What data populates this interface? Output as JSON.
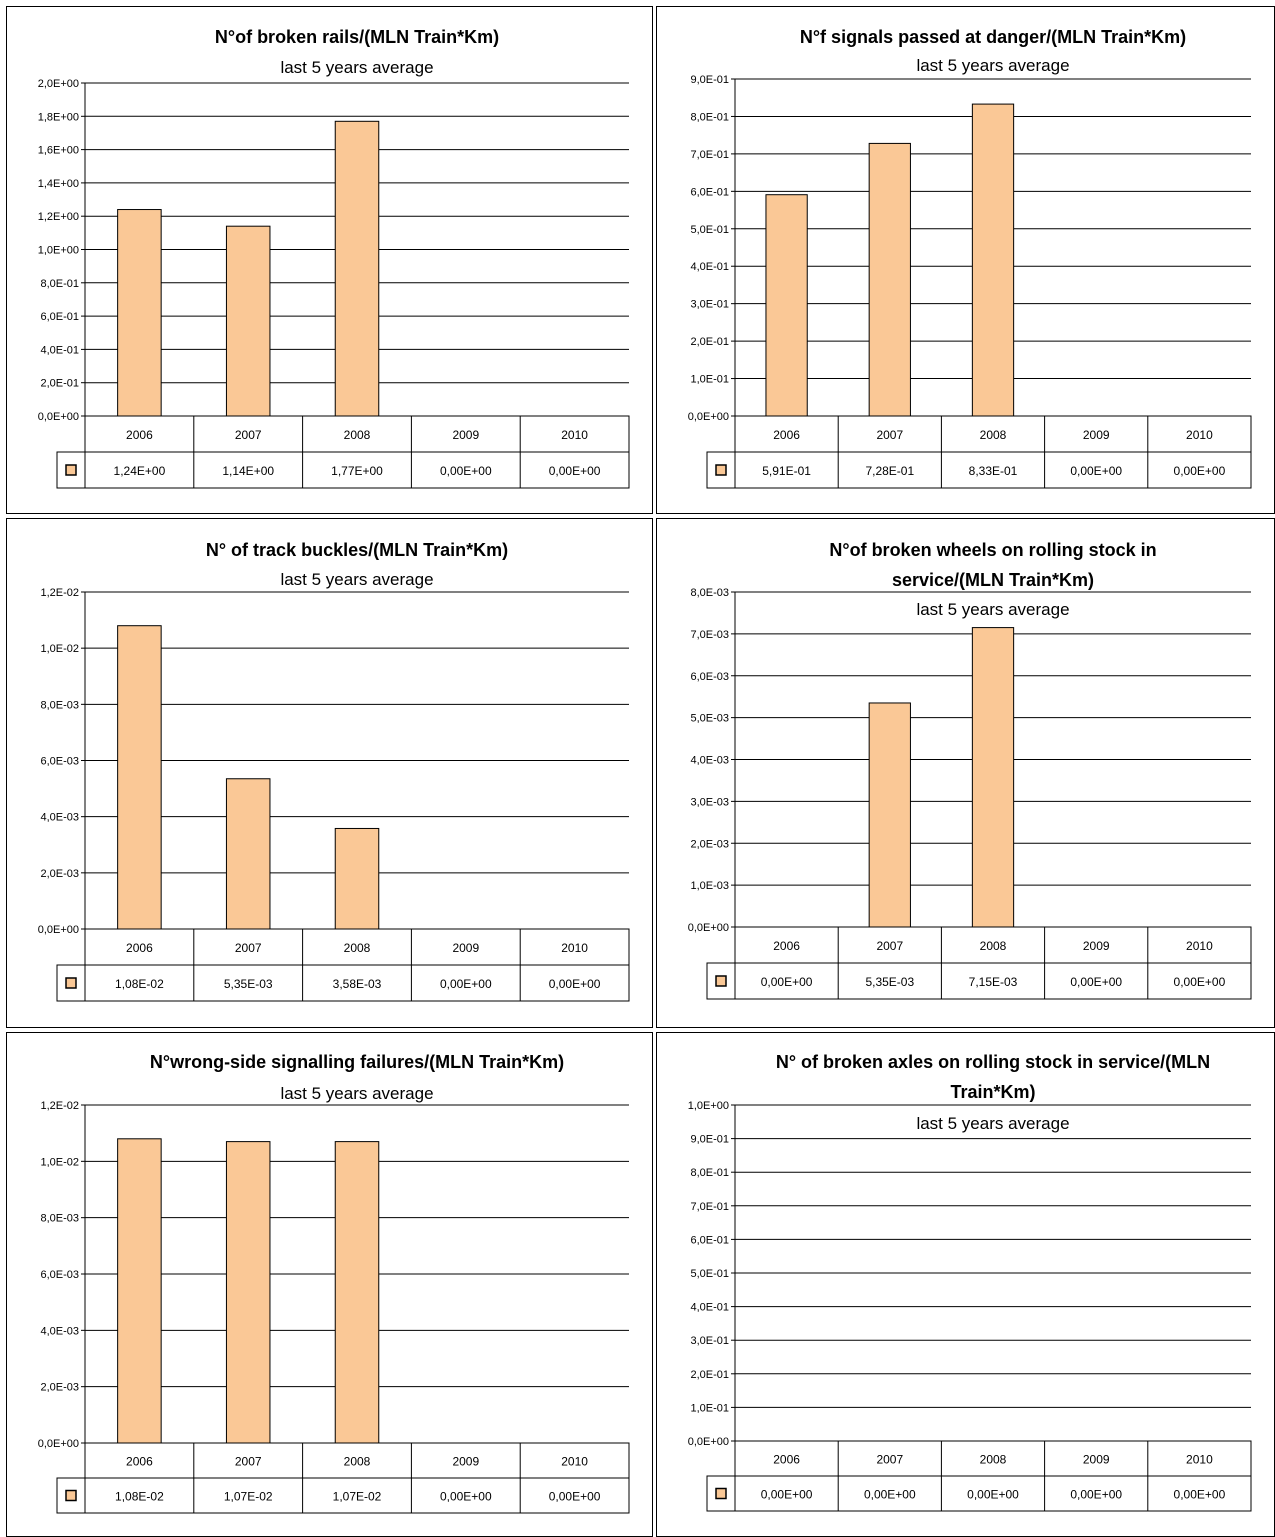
{
  "colors": {
    "bar_fill": "#FAC896",
    "bar_stroke": "#000000",
    "grid": "#000000"
  },
  "chart_data": [
    {
      "type": "bar",
      "title": "N°of broken rails/(MLN Train*Km)",
      "subtitle": "last 5 years average",
      "categories": [
        "2006",
        "2007",
        "2008",
        "2009",
        "2010"
      ],
      "values": [
        1.24,
        1.14,
        1.77,
        0,
        0
      ],
      "value_labels": [
        "1,24E+00",
        "1,14E+00",
        "1,77E+00",
        "0,00E+00",
        "0,00E+00"
      ],
      "ylim": [
        0,
        2.0
      ],
      "yticks": [
        "0,0E+00",
        "2,0E-01",
        "4,0E-01",
        "6,0E-01",
        "8,0E-01",
        "1,0E+00",
        "1,2E+00",
        "1,4E+00",
        "1,6E+00",
        "1,8E+00",
        "2,0E+00"
      ],
      "grid": true
    },
    {
      "type": "bar",
      "title": "N°f signals passed at danger/(MLN Train*Km)",
      "subtitle": "last 5 years average",
      "categories": [
        "2006",
        "2007",
        "2008",
        "2009",
        "2010"
      ],
      "values": [
        0.591,
        0.728,
        0.833,
        0,
        0
      ],
      "value_labels": [
        "5,91E-01",
        "7,28E-01",
        "8,33E-01",
        "0,00E+00",
        "0,00E+00"
      ],
      "ylim": [
        0,
        0.9
      ],
      "yticks": [
        "0,0E+00",
        "1,0E-01",
        "2,0E-01",
        "3,0E-01",
        "4,0E-01",
        "5,0E-01",
        "6,0E-01",
        "7,0E-01",
        "8,0E-01",
        "9,0E-01"
      ],
      "grid": true
    },
    {
      "type": "bar",
      "title": "N° of track buckles/(MLN Train*Km)",
      "subtitle": "last 5 years average",
      "categories": [
        "2006",
        "2007",
        "2008",
        "2009",
        "2010"
      ],
      "values": [
        0.0108,
        0.00535,
        0.00358,
        0,
        0
      ],
      "value_labels": [
        "1,08E-02",
        "5,35E-03",
        "3,58E-03",
        "0,00E+00",
        "0,00E+00"
      ],
      "ylim": [
        0,
        0.012
      ],
      "yticks": [
        "0,0E+00",
        "2,0E-03",
        "4,0E-03",
        "6,0E-03",
        "8,0E-03",
        "1,0E-02",
        "1,2E-02"
      ],
      "grid": true
    },
    {
      "type": "bar",
      "title": "N°of broken wheels on rolling stock in service/(MLN Train*Km)",
      "title_lines": [
        "N°of broken wheels on rolling stock in",
        "service/(MLN Train*Km)"
      ],
      "subtitle": "last 5 years average",
      "categories": [
        "2006",
        "2007",
        "2008",
        "2009",
        "2010"
      ],
      "values": [
        0,
        0.00535,
        0.00715,
        0,
        0
      ],
      "value_labels": [
        "0,00E+00",
        "5,35E-03",
        "7,15E-03",
        "0,00E+00",
        "0,00E+00"
      ],
      "ylim": [
        0,
        0.008
      ],
      "yticks": [
        "0,0E+00",
        "1,0E-03",
        "2,0E-03",
        "3,0E-03",
        "4,0E-03",
        "5,0E-03",
        "6,0E-03",
        "7,0E-03",
        "8,0E-03"
      ],
      "grid": true
    },
    {
      "type": "bar",
      "title": "N°wrong-side signalling failures/(MLN Train*Km)",
      "subtitle": "last 5 years average",
      "categories": [
        "2006",
        "2007",
        "2008",
        "2009",
        "2010"
      ],
      "values": [
        0.0108,
        0.0107,
        0.0107,
        0,
        0
      ],
      "value_labels": [
        "1,08E-02",
        "1,07E-02",
        "1,07E-02",
        "0,00E+00",
        "0,00E+00"
      ],
      "ylim": [
        0,
        0.012
      ],
      "yticks": [
        "0,0E+00",
        "2,0E-03",
        "4,0E-03",
        "6,0E-03",
        "8,0E-03",
        "1,0E-02",
        "1,2E-02"
      ],
      "grid": true
    },
    {
      "type": "bar",
      "title": "N° of broken axles on rolling stock in service/(MLN Train*Km)",
      "title_lines": [
        "N° of broken axles on rolling stock in service/(MLN",
        "Train*Km)"
      ],
      "subtitle": "last 5 years average",
      "categories": [
        "2006",
        "2007",
        "2008",
        "2009",
        "2010"
      ],
      "values": [
        0,
        0,
        0,
        0,
        0
      ],
      "value_labels": [
        "0,00E+00",
        "0,00E+00",
        "0,00E+00",
        "0,00E+00",
        "0,00E+00"
      ],
      "ylim": [
        0,
        1.0
      ],
      "yticks": [
        "0,0E+00",
        "1,0E-01",
        "2,0E-01",
        "3,0E-01",
        "4,0E-01",
        "5,0E-01",
        "6,0E-01",
        "7,0E-01",
        "8,0E-01",
        "9,0E-01",
        "1,0E+00"
      ],
      "grid": true
    }
  ]
}
